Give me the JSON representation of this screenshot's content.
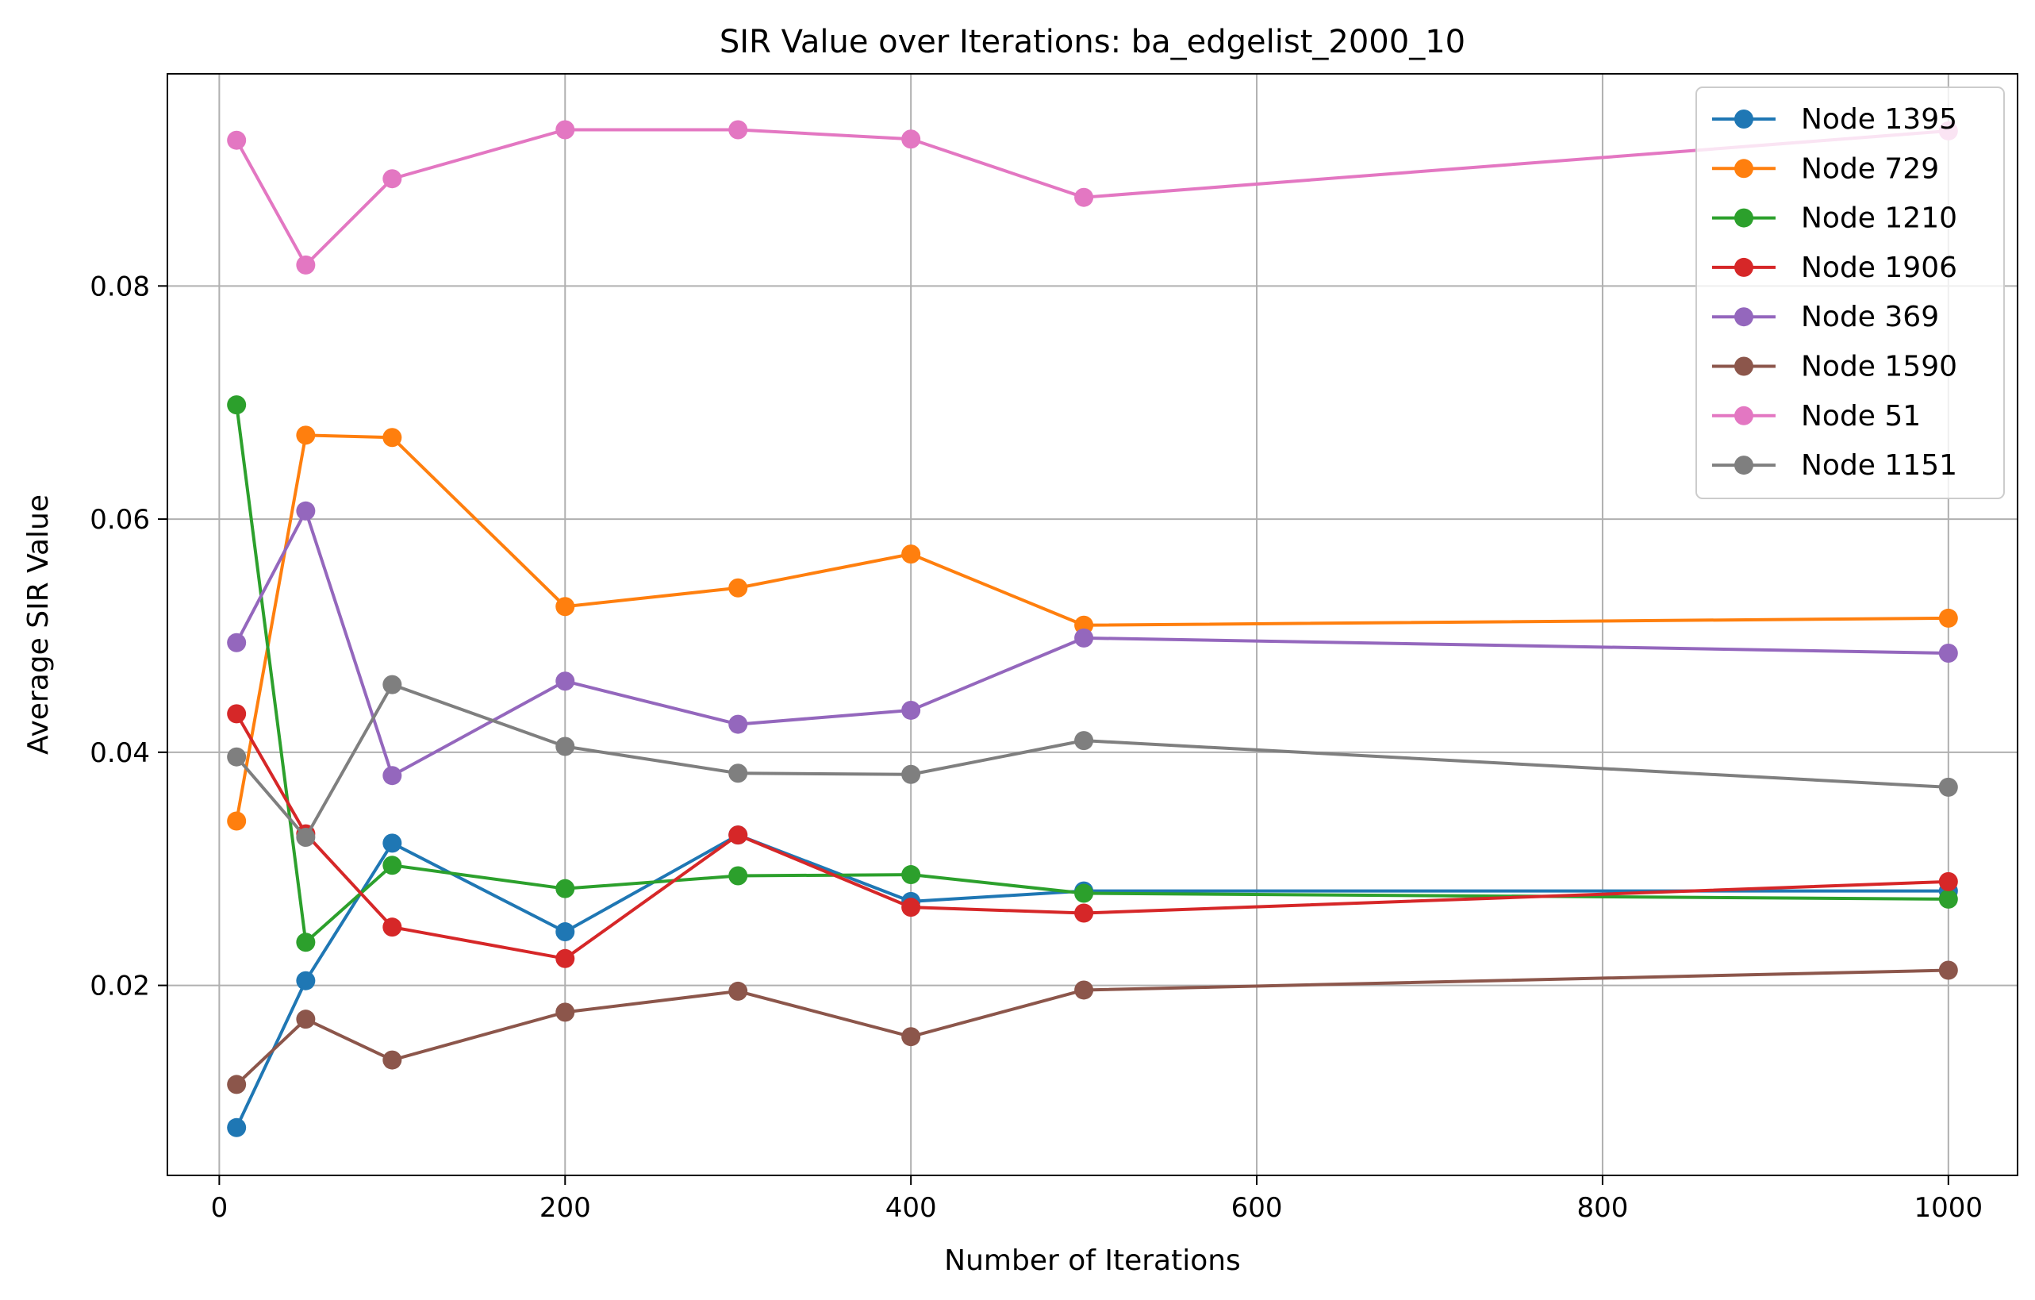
{
  "chart_data": {
    "type": "line",
    "title": "SIR Value over Iterations: ba_edgelist_2000_10",
    "xlabel": "Number of Iterations",
    "ylabel": "Average SIR Value",
    "x": [
      10,
      50,
      100,
      200,
      300,
      400,
      500,
      1000
    ],
    "xlim": [
      -30,
      1040
    ],
    "ylim": [
      0.0037,
      0.0982
    ],
    "xticks": [
      0,
      200,
      400,
      600,
      800,
      1000
    ],
    "xtick_labels": [
      "0",
      "200",
      "400",
      "600",
      "800",
      "1000"
    ],
    "yticks": [
      0.02,
      0.04,
      0.06,
      0.08
    ],
    "ytick_labels": [
      "0.02",
      "0.04",
      "0.06",
      "0.08"
    ],
    "grid": true,
    "legend_position": "upper right",
    "series": [
      {
        "name": "Node 1395",
        "color": "#1f77b4",
        "values": [
          0.0078,
          0.0204,
          0.0322,
          0.0246,
          0.0329,
          0.0272,
          0.0281,
          0.0281
        ]
      },
      {
        "name": "Node 729",
        "color": "#ff7f0e",
        "values": [
          0.0341,
          0.0672,
          0.067,
          0.0525,
          0.0541,
          0.057,
          0.0509,
          0.0515
        ]
      },
      {
        "name": "Node 1210",
        "color": "#2ca02c",
        "values": [
          0.0698,
          0.0237,
          0.0303,
          0.0283,
          0.0294,
          0.0295,
          0.0279,
          0.0274
        ]
      },
      {
        "name": "Node 1906",
        "color": "#d62728",
        "values": [
          0.0433,
          0.033,
          0.025,
          0.0223,
          0.0329,
          0.0267,
          0.0262,
          0.0289
        ]
      },
      {
        "name": "Node 369",
        "color": "#9467bd",
        "values": [
          0.0494,
          0.0607,
          0.038,
          0.0461,
          0.0424,
          0.0436,
          0.0498,
          0.0485
        ]
      },
      {
        "name": "Node 1590",
        "color": "#8c564b",
        "values": [
          0.0115,
          0.0171,
          0.0136,
          0.0177,
          0.0195,
          0.0156,
          0.0196,
          0.0213
        ]
      },
      {
        "name": "Node 51",
        "color": "#e377c2",
        "values": [
          0.0925,
          0.0818,
          0.0892,
          0.0934,
          0.0934,
          0.0926,
          0.0876,
          0.0933
        ]
      },
      {
        "name": "Node 1151",
        "color": "#7f7f7f",
        "values": [
          0.0396,
          0.0327,
          0.0458,
          0.0405,
          0.0382,
          0.0381,
          0.041,
          0.037
        ]
      }
    ]
  }
}
